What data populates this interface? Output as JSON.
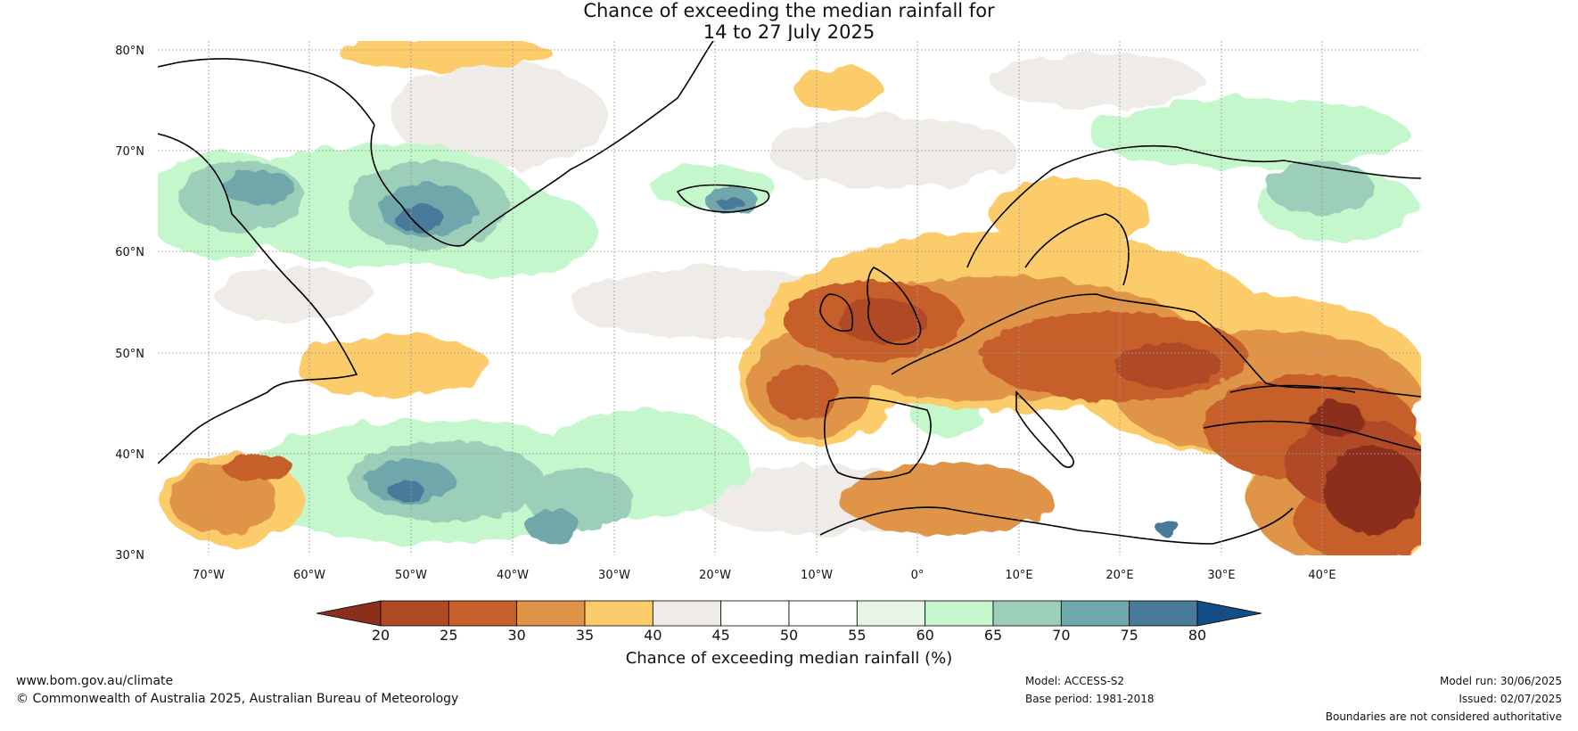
{
  "title": {
    "line1": "Chance of exceeding the median rainfall for",
    "line2": "14 to 27 July 2025"
  },
  "axes": {
    "lat_labels": [
      "80°N",
      "70°N",
      "60°N",
      "50°N",
      "40°N",
      "30°N"
    ],
    "lon_labels": [
      "70°W",
      "60°W",
      "50°W",
      "40°W",
      "30°W",
      "20°W",
      "10°W",
      "0°",
      "10°E",
      "20°E",
      "30°E",
      "40°E"
    ]
  },
  "colorbar": {
    "label": "Chance of exceeding median rainfall (%)",
    "ticks": [
      "20",
      "25",
      "30",
      "35",
      "40",
      "45",
      "50",
      "55",
      "60",
      "65",
      "70",
      "75",
      "80"
    ],
    "colors": [
      "#8b2f1c",
      "#b04a26",
      "#c65f2c",
      "#df9447",
      "#fdcc6a",
      "#efebe7",
      "#ffffff",
      "#ffffff",
      "#e7f6e7",
      "#c4f7cc",
      "#9ccfb9",
      "#6fa7ab",
      "#4a7a99",
      "#154e85"
    ]
  },
  "footer": {
    "url": "www.bom.gov.au/climate",
    "copyright": "© Commonwealth of Australia 2025, Australian Bureau of Meteorology",
    "model": "Model: ACCESS-S2",
    "base_period": "Base period: 1981-2018",
    "model_run": "Model run: 30/06/2025",
    "issued": "Issued: 02/07/2025",
    "disclaimer": "Boundaries are not considered authoritative"
  }
}
